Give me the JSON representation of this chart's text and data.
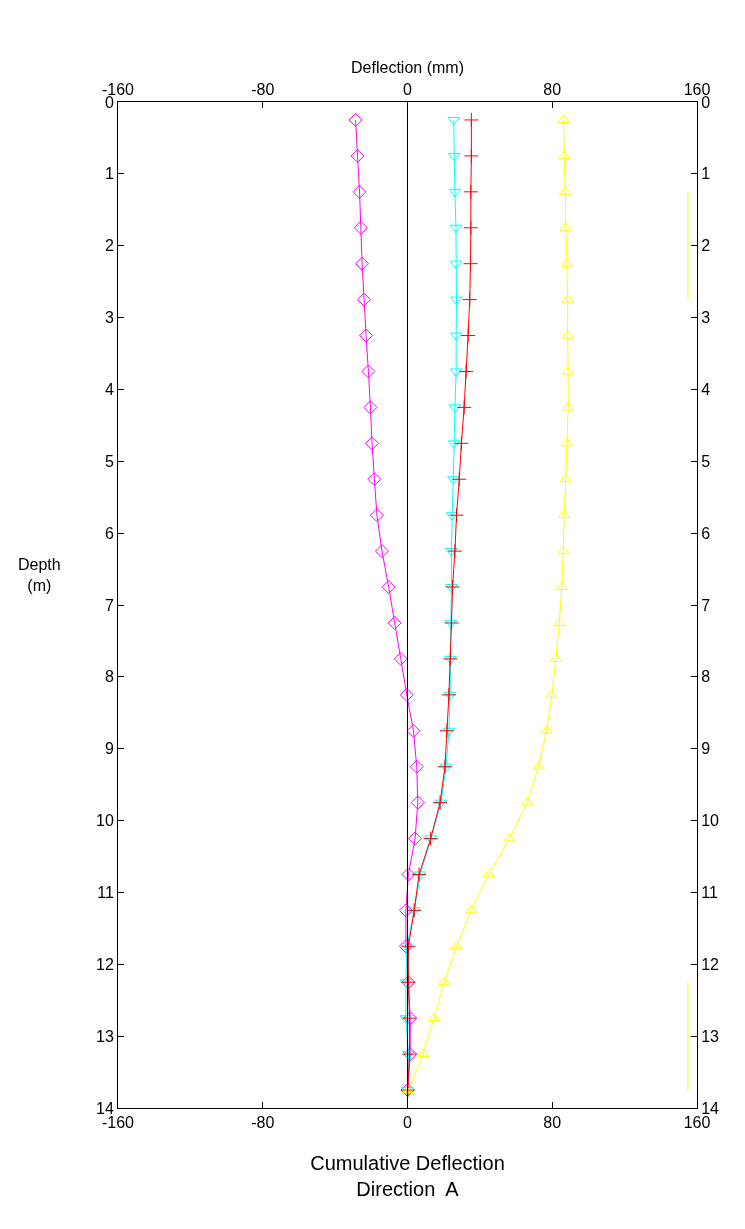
{
  "chart_data": {
    "type": "line",
    "x2label": "Deflection (mm)",
    "xlabel": "Cumulative Deflection\nDirection  A",
    "ylabel": "Depth\n(m)",
    "orientation": "horizontal",
    "x": [
      0.25,
      0.75,
      1.25,
      1.75,
      2.25,
      2.75,
      3.25,
      3.75,
      4.25,
      4.75,
      5.25,
      5.75,
      6.25,
      6.75,
      7.25,
      7.75,
      8.25,
      8.75,
      9.25,
      9.75,
      10.25,
      10.75,
      11.25,
      11.75,
      12.25,
      12.75,
      13.25,
      13.75
    ],
    "series": [
      {
        "color": "#ff00ff",
        "marker": "diamond",
        "values": [
          -28.7,
          -27.6,
          -26.5,
          -25.8,
          -25.1,
          -24,
          -22.9,
          -21.6,
          -20.5,
          -19.6,
          -18.3,
          -16.9,
          -14.1,
          -10.4,
          -7.1,
          -3.7,
          -0.4,
          3.3,
          5.1,
          5.7,
          4.2,
          0.5,
          -0.9,
          -0.9,
          0.5,
          1.5,
          1.5,
          0
        ]
      },
      {
        "color": "#00ffff",
        "marker": "triangle-down",
        "values": [
          25.6,
          25.8,
          26.2,
          26.8,
          26.9,
          27.1,
          26.9,
          26.9,
          26.2,
          25.8,
          25.3,
          24.7,
          24.3,
          24.3,
          24,
          23.8,
          23.5,
          22.9,
          21.3,
          18.5,
          13,
          7,
          3.8,
          -0.4,
          -0.9,
          -0.9,
          0.5,
          0
        ]
      },
      {
        "color": "#ff0000",
        "marker": "cross",
        "values": [
          35.3,
          35.3,
          35,
          35,
          34.8,
          34.4,
          33.5,
          32.4,
          31.3,
          29.8,
          28.6,
          27.1,
          26.2,
          24.9,
          24.3,
          23.6,
          22.9,
          21.8,
          20.7,
          18,
          12.8,
          6.4,
          3.7,
          0.5,
          0.5,
          1.1,
          1.1,
          0.2
        ]
      },
      {
        "color": "#ffff00",
        "marker": "triangle",
        "values": [
          86.3,
          86.6,
          87.2,
          87.5,
          88.1,
          88.5,
          88.5,
          88.8,
          88.8,
          88.1,
          87.5,
          86.6,
          86.1,
          85.3,
          83.9,
          82,
          79.8,
          76.8,
          72.4,
          66.1,
          56.4,
          44.9,
          35.3,
          27.1,
          20.2,
          14.7,
          8.6,
          0.5
        ]
      },
      {
        "color": "#ffff00",
        "marker": "none",
        "x": [
          1.25,
          2.75,
          null,
          12.25,
          13.75
        ],
        "values": [
          155,
          155,
          null,
          155,
          155
        ]
      }
    ],
    "xlim": [
      -160,
      160
    ],
    "xticks": [
      -160,
      -80,
      0,
      80,
      160
    ],
    "x2lim": [
      -160,
      160
    ],
    "x2ticks": [
      -160,
      -80,
      0,
      80,
      160
    ],
    "ylim": [
      14,
      0
    ],
    "yticks": [
      0,
      1,
      2,
      3,
      4,
      5,
      6,
      7,
      8,
      9,
      10,
      11,
      12,
      13,
      14
    ],
    "y2lim": [
      14,
      0
    ],
    "y2ticks": [
      0,
      1,
      2,
      3,
      4,
      5,
      6,
      7,
      8,
      9,
      10,
      11,
      12,
      13,
      14
    ],
    "ref_lines": [
      {
        "axis": "x",
        "value": 0,
        "color": "#000000"
      }
    ],
    "line_style": "solid"
  }
}
